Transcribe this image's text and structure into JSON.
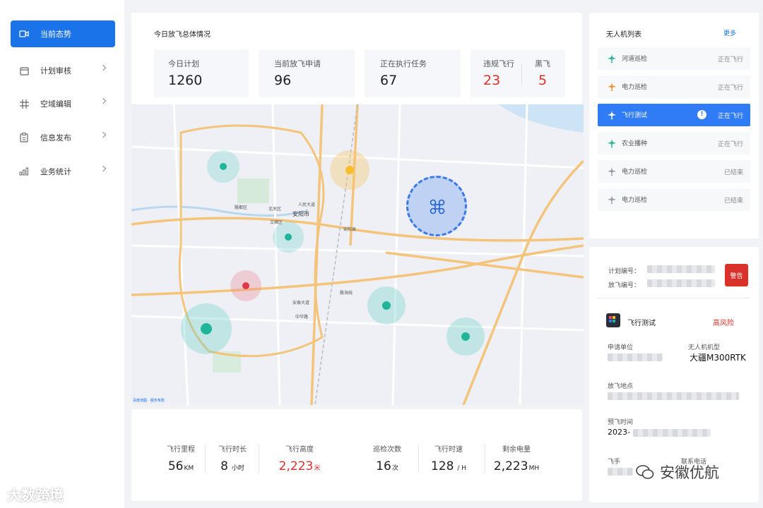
{
  "sidebar": {
    "items": [
      {
        "label": "当前态势",
        "icon": "video-icon",
        "active": true
      },
      {
        "label": "计划审核",
        "icon": "calendar-icon"
      },
      {
        "label": "空域编辑",
        "icon": "grid-icon"
      },
      {
        "label": "信息发布",
        "icon": "clipboard-icon"
      },
      {
        "label": "业务统计",
        "icon": "bar-chart-icon"
      }
    ]
  },
  "overview": {
    "title": "今日放飞总体情况",
    "stats": [
      {
        "label": "今日计划",
        "value": "1260"
      },
      {
        "label": "当前放飞申请",
        "value": "96"
      },
      {
        "label": "正在执行任务",
        "value": "67"
      },
      {
        "label": "违规飞行",
        "value": "23"
      },
      {
        "label": "黑飞",
        "value": "5"
      }
    ],
    "alert_color": "#d9322b"
  },
  "map": {
    "labels": {
      "city": "安阳市",
      "district1": "北关区",
      "district2": "文峰区",
      "district3": "殷都区",
      "county": "安阳县",
      "road1": "殷海线",
      "road2": "安泰大道",
      "road3": "人民大道",
      "road4": "中华路"
    },
    "footer": "百度地图 · 服务条款"
  },
  "drone_list": {
    "title": "无人机列表",
    "more": "更多",
    "items": [
      {
        "name": "河道巡检",
        "status": "正在飞行",
        "icon_color": "#2fb39a"
      },
      {
        "name": "电力巡检",
        "status": "正在飞行",
        "icon_color": "#f0963a"
      },
      {
        "name": "飞行测试",
        "status": "正在飞行",
        "icon_color": "#ffffff",
        "active": true,
        "warn": "!"
      },
      {
        "name": "农业播种",
        "status": "正在飞行",
        "icon_color": "#2fb39a"
      },
      {
        "name": "电力巡检",
        "status": "已结束",
        "icon_color": "#9aa0a8"
      },
      {
        "name": "电力巡检",
        "status": "已结束",
        "icon_color": "#9aa0a8"
      }
    ]
  },
  "detail": {
    "plan_no_label": "计划编号：",
    "flight_no_label": "放飞编号：",
    "alert_button": "警告",
    "task_name": "飞行测试",
    "risk": "高风险",
    "applicant_label": "申请单位",
    "model_label": "无人机机型",
    "model_value": "大疆M300RTK",
    "location_label": "放飞地点",
    "time_label": "预飞时间",
    "time_value": "2023-",
    "pilot_label": "飞手",
    "phone_label": "联系电话"
  },
  "flight_stats": [
    {
      "label": "飞行里程",
      "value": "56",
      "unit": "KM"
    },
    {
      "label": "飞行时长",
      "value": "8",
      "unit": "小时"
    },
    {
      "label": "飞行高度",
      "value": "2,223",
      "unit": "米",
      "highlight": true
    },
    {
      "label": "巡检次数",
      "value": "16",
      "unit": "次"
    },
    {
      "label": "飞行时速",
      "value": "128",
      "unit": "/ H"
    },
    {
      "label": "剩余电量",
      "value": "2,223",
      "unit": "MH"
    }
  ],
  "watermarks": {
    "left": "大数跨境",
    "right": "安徽优航"
  }
}
